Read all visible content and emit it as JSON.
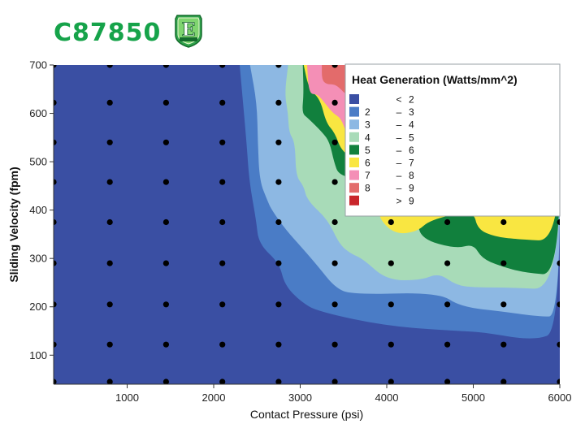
{
  "brand": {
    "name": "C87850",
    "logo_icon": "e-bronze-shield-icon",
    "color": "#16a34a"
  },
  "chart_data": {
    "type": "heatmap",
    "title": "",
    "xlabel": "Contact Pressure (psi)",
    "ylabel": "Sliding Velocity (fpm)",
    "xlim": [
      150,
      6000
    ],
    "ylim": [
      40,
      700
    ],
    "x_ticks": [
      1000,
      2000,
      3000,
      4000,
      5000,
      6000
    ],
    "y_ticks": [
      100,
      200,
      300,
      400,
      500,
      600,
      700
    ],
    "x_tick_labels": [
      "1000",
      "2000",
      "3000",
      "4000",
      "5000",
      "6000"
    ],
    "y_tick_labels": [
      "100",
      "200",
      "300",
      "400",
      "500",
      "600",
      "700"
    ],
    "legend": {
      "title": "Heat Generation (Watts/mm^2)",
      "placement": "top-right",
      "entries": [
        {
          "lower": "",
          "sep": "<",
          "upper": "2",
          "color": "#3a4fa3"
        },
        {
          "lower": "2",
          "sep": "–",
          "upper": "3",
          "color": "#4a7cc6"
        },
        {
          "lower": "3",
          "sep": "–",
          "upper": "4",
          "color": "#8db8e3"
        },
        {
          "lower": "4",
          "sep": "–",
          "upper": "5",
          "color": "#a8dbb8"
        },
        {
          "lower": "5",
          "sep": "–",
          "upper": "6",
          "color": "#11803d"
        },
        {
          "lower": "6",
          "sep": "–",
          "upper": "7",
          "color": "#f9e641"
        },
        {
          "lower": "7",
          "sep": "–",
          "upper": "8",
          "color": "#f48fb6"
        },
        {
          "lower": "8",
          "sep": "–",
          "upper": "9",
          "color": "#e36b6b"
        },
        {
          "lower": "",
          "sep": ">",
          "upper": "9",
          "color": "#c9262b"
        }
      ]
    },
    "sample_points": {
      "x": [
        150,
        800,
        1450,
        2100,
        2750,
        3400,
        4050,
        4700,
        5350,
        6000
      ],
      "y": [
        45,
        122,
        205,
        290,
        375,
        458,
        540,
        622,
        700
      ]
    },
    "regions": [
      {
        "level": 1,
        "boundary": [
          [
            2300,
            700
          ],
          [
            2380,
            540
          ],
          [
            2410,
            460
          ],
          [
            2490,
            380
          ],
          [
            2520,
            330
          ],
          [
            2760,
            290
          ],
          [
            2820,
            245
          ],
          [
            3010,
            210
          ],
          [
            3210,
            190
          ],
          [
            4000,
            160
          ],
          [
            4810,
            150
          ],
          [
            5100,
            148
          ],
          [
            5700,
            130
          ],
          [
            6000,
            150
          ],
          [
            6000,
            700
          ]
        ]
      },
      {
        "level": 2,
        "boundary": [
          [
            2420,
            700
          ],
          [
            2500,
            620
          ],
          [
            2510,
            540
          ],
          [
            2530,
            460
          ],
          [
            2620,
            420
          ],
          [
            2670,
            400
          ],
          [
            2830,
            360
          ],
          [
            3030,
            320
          ],
          [
            3200,
            285
          ],
          [
            3400,
            240
          ],
          [
            3600,
            225
          ],
          [
            4600,
            230
          ],
          [
            4850,
            200
          ],
          [
            5350,
            190
          ],
          [
            5750,
            180
          ],
          [
            6000,
            180
          ],
          [
            6000,
            700
          ]
        ]
      },
      {
        "level": 3,
        "boundary": [
          [
            2860,
            700
          ],
          [
            2820,
            640
          ],
          [
            2860,
            600
          ],
          [
            2870,
            560
          ],
          [
            2940,
            540
          ],
          [
            2950,
            470
          ],
          [
            3040,
            450
          ],
          [
            3080,
            420
          ],
          [
            3320,
            380
          ],
          [
            3450,
            330
          ],
          [
            3580,
            310
          ],
          [
            3720,
            300
          ],
          [
            4000,
            255
          ],
          [
            4400,
            255
          ],
          [
            4600,
            270
          ],
          [
            4800,
            245
          ],
          [
            5000,
            240
          ],
          [
            5400,
            240
          ],
          [
            6000,
            235
          ],
          [
            6000,
            700
          ]
        ]
      },
      {
        "level": 4,
        "boundary": [
          [
            3030,
            700
          ],
          [
            3040,
            640
          ],
          [
            3020,
            600
          ],
          [
            3090,
            590
          ],
          [
            3260,
            560
          ],
          [
            3340,
            540
          ],
          [
            3390,
            500
          ],
          [
            3450,
            470
          ],
          [
            3820,
            460
          ],
          [
            3860,
            440
          ],
          [
            3860,
            410
          ],
          [
            4050,
            400
          ],
          [
            4350,
            380
          ],
          [
            4400,
            340
          ],
          [
            4800,
            320
          ],
          [
            5000,
            330
          ],
          [
            5100,
            300
          ],
          [
            5300,
            285
          ],
          [
            5600,
            270
          ],
          [
            6000,
            265
          ],
          [
            6000,
            700
          ]
        ]
      },
      {
        "level": 5,
        "boundary": [
          [
            3040,
            700
          ],
          [
            3100,
            650
          ],
          [
            3230,
            630
          ],
          [
            3300,
            580
          ],
          [
            3400,
            560
          ],
          [
            3480,
            520
          ],
          [
            3750,
            490
          ],
          [
            3840,
            450
          ],
          [
            3900,
            410
          ],
          [
            3920,
            380
          ],
          [
            4100,
            350
          ],
          [
            4350,
            355
          ],
          [
            4500,
            380
          ],
          [
            5000,
            400
          ],
          [
            5050,
            360
          ],
          [
            5250,
            345
          ],
          [
            5500,
            340
          ],
          [
            6000,
            335
          ],
          [
            6000,
            700
          ]
        ]
      },
      {
        "level": 6,
        "boundary": [
          [
            3080,
            700
          ],
          [
            3100,
            640
          ],
          [
            3200,
            640
          ],
          [
            3290,
            620
          ],
          [
            3380,
            600
          ],
          [
            3470,
            590
          ],
          [
            3530,
            560
          ],
          [
            3650,
            540
          ],
          [
            3850,
            530
          ],
          [
            4000,
            520
          ],
          [
            6000,
            520
          ],
          [
            6000,
            700
          ]
        ]
      },
      {
        "level": 7,
        "boundary": [
          [
            3250,
            700
          ],
          [
            3250,
            670
          ],
          [
            3300,
            660
          ],
          [
            3400,
            660
          ],
          [
            3470,
            650
          ],
          [
            3520,
            640
          ],
          [
            3600,
            640
          ],
          [
            6000,
            640
          ],
          [
            6000,
            700
          ]
        ]
      }
    ]
  }
}
